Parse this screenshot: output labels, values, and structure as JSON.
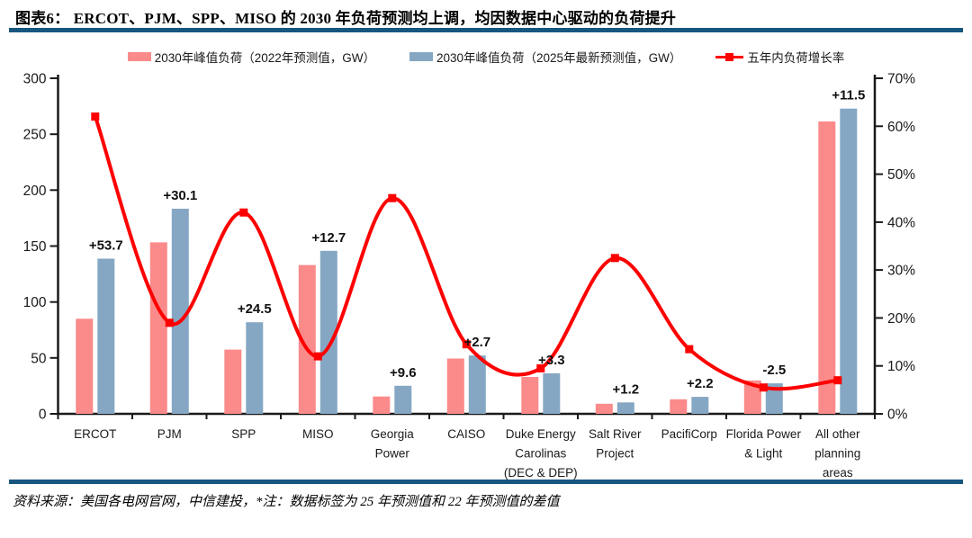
{
  "header": {
    "title": "图表6：  ERCOT、PJM、SPP、MISO 的 2030 年负荷预测均上调，均因数据中心驱动的负荷提升"
  },
  "legend": [
    {
      "label": "2030年峰值负荷（2022年预测值，GW）",
      "color": "#FB8A8A",
      "type": "bar"
    },
    {
      "label": "2030年峰值负荷（2025年最新预测值，GW）",
      "color": "#85A7C3",
      "type": "bar"
    },
    {
      "label": "五年内负荷增长率",
      "color": "#FE0000",
      "type": "line"
    }
  ],
  "footer": {
    "source_note": "资料来源：美国各电网官网，中信建投，*注：数据标签为 25 年预测值和 22 年预测值的差值"
  },
  "colors": {
    "rule": "#17567F",
    "bar_2022": "#FB8A8A",
    "bar_2025": "#85A7C3",
    "growth_line": "#FE0000",
    "axis_text": "#1A1A1A"
  },
  "chart_data": {
    "type": "bar+line",
    "title": "ERCOT、PJM、SPP、MISO 的 2030 年负荷预测均上调，均因数据中心驱动的负荷提升",
    "categories": [
      [
        "ERCOT"
      ],
      [
        "PJM"
      ],
      [
        "SPP"
      ],
      [
        "MISO"
      ],
      [
        "Georgia",
        "Power"
      ],
      [
        "CAISO"
      ],
      [
        "Duke Energy",
        "Carolinas",
        "(DEC & DEP)"
      ],
      [
        "Salt River",
        "Project"
      ],
      [
        "PacifiCorp"
      ],
      [
        "Florida Power",
        "& Light"
      ],
      [
        "All other",
        "planning",
        "areas"
      ]
    ],
    "series": [
      {
        "name": "2030年峰值负荷（2022年预测值，GW）",
        "type": "bar",
        "axis": "left",
        "color": "#FB8A8A",
        "values": [
          85.0,
          153.3,
          57.4,
          133.0,
          15.5,
          49.5,
          33.0,
          9.0,
          13.0,
          29.8,
          261.4
        ]
      },
      {
        "name": "2030年峰值负荷（2025年最新预测值，GW）",
        "type": "bar",
        "axis": "left",
        "color": "#85A7C3",
        "values": [
          138.7,
          183.4,
          81.9,
          145.7,
          25.1,
          52.2,
          36.3,
          10.2,
          15.2,
          27.3,
          272.9
        ]
      },
      {
        "name": "五年内负荷增长率",
        "type": "line",
        "axis": "right",
        "color": "#FE0000",
        "values": [
          62,
          19,
          42,
          12,
          45,
          14.5,
          9.5,
          32.5,
          13.5,
          5.5,
          7
        ]
      }
    ],
    "data_labels": [
      "+53.7",
      "+30.1",
      "+24.5",
      "+12.7",
      "+9.6",
      "+2.7",
      "+3.3",
      "+1.2",
      "+2.2",
      "-2.5",
      "+11.5"
    ],
    "left_axis": {
      "min": 0,
      "max": 300,
      "step": 50,
      "unit": "GW",
      "ticks": [
        "0",
        "50",
        "100",
        "150",
        "200",
        "250",
        "300"
      ]
    },
    "right_axis": {
      "min": 0,
      "max": 70,
      "step": 10,
      "unit": "%",
      "ticks": [
        "0%",
        "10%",
        "20%",
        "30%",
        "40%",
        "50%",
        "60%",
        "70%"
      ]
    },
    "grid": false,
    "legend_position": "top"
  }
}
